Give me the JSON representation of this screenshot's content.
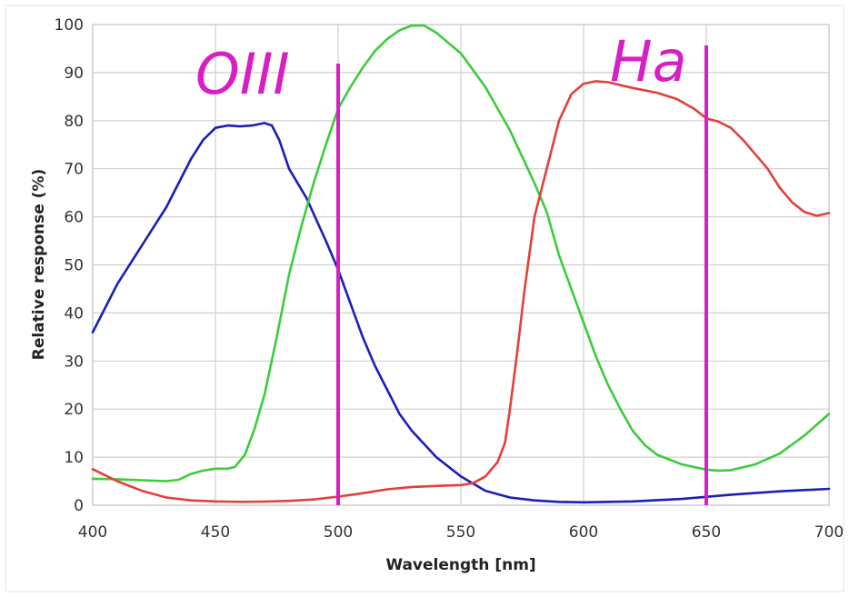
{
  "chart_data": {
    "type": "line",
    "title": "",
    "xlabel": "Wavelength [nm]",
    "ylabel": "Relative response (%)",
    "xlim": [
      400,
      700
    ],
    "ylim": [
      0,
      100
    ],
    "xticks": [
      400,
      450,
      500,
      550,
      600,
      650,
      700
    ],
    "yticks": [
      0,
      10,
      20,
      30,
      40,
      50,
      60,
      70,
      80,
      90,
      100
    ],
    "grid": true,
    "series": [
      {
        "name": "Blue",
        "color": "#1a1fb8",
        "points": [
          [
            400,
            36
          ],
          [
            410,
            46
          ],
          [
            420,
            54
          ],
          [
            430,
            62
          ],
          [
            440,
            72
          ],
          [
            445,
            76
          ],
          [
            450,
            78.5
          ],
          [
            455,
            79
          ],
          [
            460,
            78.8
          ],
          [
            465,
            79
          ],
          [
            470,
            79.5
          ],
          [
            473,
            79
          ],
          [
            476,
            76
          ],
          [
            480,
            70
          ],
          [
            487,
            64
          ],
          [
            495,
            55
          ],
          [
            500,
            49
          ],
          [
            505,
            42
          ],
          [
            510,
            35
          ],
          [
            515,
            29
          ],
          [
            520,
            24
          ],
          [
            525,
            19
          ],
          [
            530,
            15.5
          ],
          [
            540,
            10
          ],
          [
            550,
            6
          ],
          [
            560,
            3
          ],
          [
            570,
            1.6
          ],
          [
            580,
            1
          ],
          [
            590,
            0.7
          ],
          [
            600,
            0.6
          ],
          [
            620,
            0.8
          ],
          [
            640,
            1.3
          ],
          [
            660,
            2.2
          ],
          [
            680,
            2.9
          ],
          [
            700,
            3.4
          ]
        ]
      },
      {
        "name": "Green",
        "color": "#3dcc3d",
        "points": [
          [
            400,
            5.5
          ],
          [
            410,
            5.4
          ],
          [
            420,
            5.2
          ],
          [
            430,
            5
          ],
          [
            435,
            5.3
          ],
          [
            440,
            6.5
          ],
          [
            445,
            7.2
          ],
          [
            450,
            7.6
          ],
          [
            455,
            7.6
          ],
          [
            458,
            8
          ],
          [
            462,
            10.5
          ],
          [
            466,
            16
          ],
          [
            470,
            23
          ],
          [
            475,
            35
          ],
          [
            480,
            48
          ],
          [
            485,
            58
          ],
          [
            490,
            67
          ],
          [
            495,
            75
          ],
          [
            500,
            82.5
          ],
          [
            505,
            87
          ],
          [
            510,
            91
          ],
          [
            515,
            94.5
          ],
          [
            520,
            97
          ],
          [
            525,
            98.8
          ],
          [
            530,
            99.8
          ],
          [
            535,
            99.8
          ],
          [
            540,
            98.3
          ],
          [
            550,
            94
          ],
          [
            560,
            87
          ],
          [
            570,
            78
          ],
          [
            580,
            67
          ],
          [
            585,
            61
          ],
          [
            590,
            52
          ],
          [
            595,
            45
          ],
          [
            600,
            38
          ],
          [
            605,
            31
          ],
          [
            610,
            25
          ],
          [
            615,
            20
          ],
          [
            620,
            15.5
          ],
          [
            625,
            12.5
          ],
          [
            630,
            10.5
          ],
          [
            640,
            8.5
          ],
          [
            650,
            7.4
          ],
          [
            655,
            7.2
          ],
          [
            660,
            7.3
          ],
          [
            670,
            8.5
          ],
          [
            680,
            10.8
          ],
          [
            690,
            14.5
          ],
          [
            700,
            19
          ]
        ]
      },
      {
        "name": "Red",
        "color": "#e3403a",
        "points": [
          [
            400,
            7.5
          ],
          [
            410,
            5
          ],
          [
            420,
            3
          ],
          [
            430,
            1.6
          ],
          [
            440,
            1
          ],
          [
            450,
            0.8
          ],
          [
            460,
            0.7
          ],
          [
            470,
            0.75
          ],
          [
            480,
            0.9
          ],
          [
            490,
            1.2
          ],
          [
            500,
            1.8
          ],
          [
            510,
            2.5
          ],
          [
            520,
            3.3
          ],
          [
            530,
            3.8
          ],
          [
            540,
            4
          ],
          [
            550,
            4.2
          ],
          [
            555,
            4.6
          ],
          [
            560,
            6
          ],
          [
            565,
            9
          ],
          [
            568,
            13
          ],
          [
            570,
            20
          ],
          [
            573,
            32
          ],
          [
            576,
            45
          ],
          [
            580,
            60
          ],
          [
            585,
            70
          ],
          [
            590,
            80
          ],
          [
            595,
            85.5
          ],
          [
            600,
            87.7
          ],
          [
            605,
            88.2
          ],
          [
            610,
            88
          ],
          [
            620,
            86.8
          ],
          [
            630,
            85.8
          ],
          [
            638,
            84.5
          ],
          [
            645,
            82.5
          ],
          [
            650,
            80.5
          ],
          [
            655,
            79.8
          ],
          [
            660,
            78.5
          ],
          [
            665,
            76
          ],
          [
            670,
            73
          ],
          [
            675,
            70
          ],
          [
            680,
            66
          ],
          [
            685,
            63
          ],
          [
            690,
            61
          ],
          [
            695,
            60.2
          ],
          [
            700,
            60.8
          ]
        ]
      }
    ],
    "markers": [
      {
        "label": "OIII",
        "x": 500,
        "color": "#d61fc4"
      },
      {
        "label": "Ha",
        "x": 650,
        "color": "#d61fc4"
      }
    ]
  }
}
